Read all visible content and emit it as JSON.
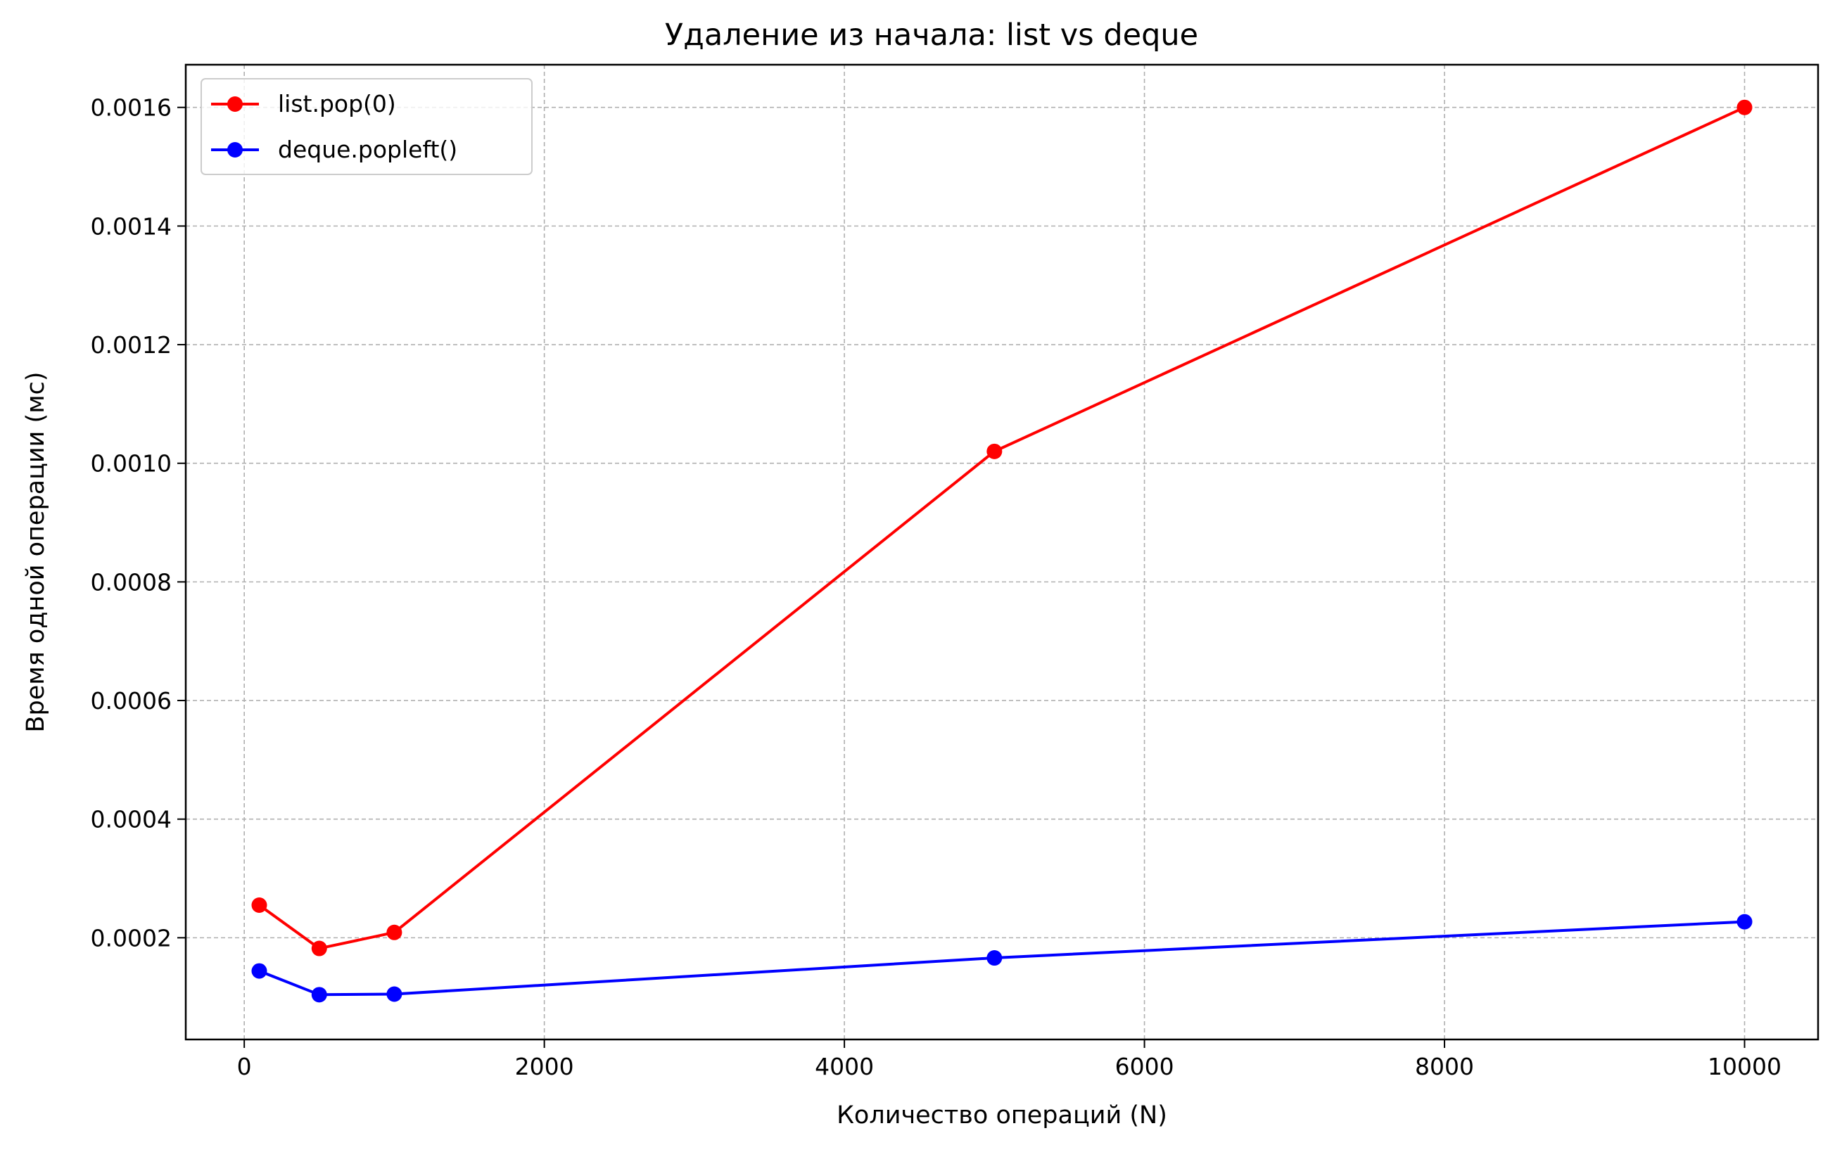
{
  "chart_data": {
    "type": "line",
    "title": "Удаление из начала: list vs deque",
    "xlabel": "Количество операций (N)",
    "ylabel": "Время одной операции (мс)",
    "x": [
      100,
      500,
      1000,
      5000,
      10000
    ],
    "xlim": [
      -390,
      10490
    ],
    "ylim": [
      2.85e-05,
      0.001672
    ],
    "xticks": [
      0,
      2000,
      4000,
      6000,
      8000,
      10000
    ],
    "xtick_labels": [
      "0",
      "2000",
      "4000",
      "6000",
      "8000",
      "10000"
    ],
    "yticks": [
      0.0002,
      0.0004,
      0.0006,
      0.0008,
      0.001,
      0.0012,
      0.0014,
      0.0016
    ],
    "ytick_labels": [
      "0.0002",
      "0.0004",
      "0.0006",
      "0.0008",
      "0.0010",
      "0.0012",
      "0.0014",
      "0.0016"
    ],
    "grid": true,
    "legend_position": "top-left",
    "series": [
      {
        "name": "list.pop(0)",
        "color": "#ff0000",
        "values": [
          0.000255,
          0.000182,
          0.000209,
          0.00102,
          0.0016
        ]
      },
      {
        "name": "deque.popleft()",
        "color": "#0000ff",
        "values": [
          0.000144,
          0.000104,
          0.000105,
          0.000166,
          0.000227
        ]
      }
    ]
  }
}
